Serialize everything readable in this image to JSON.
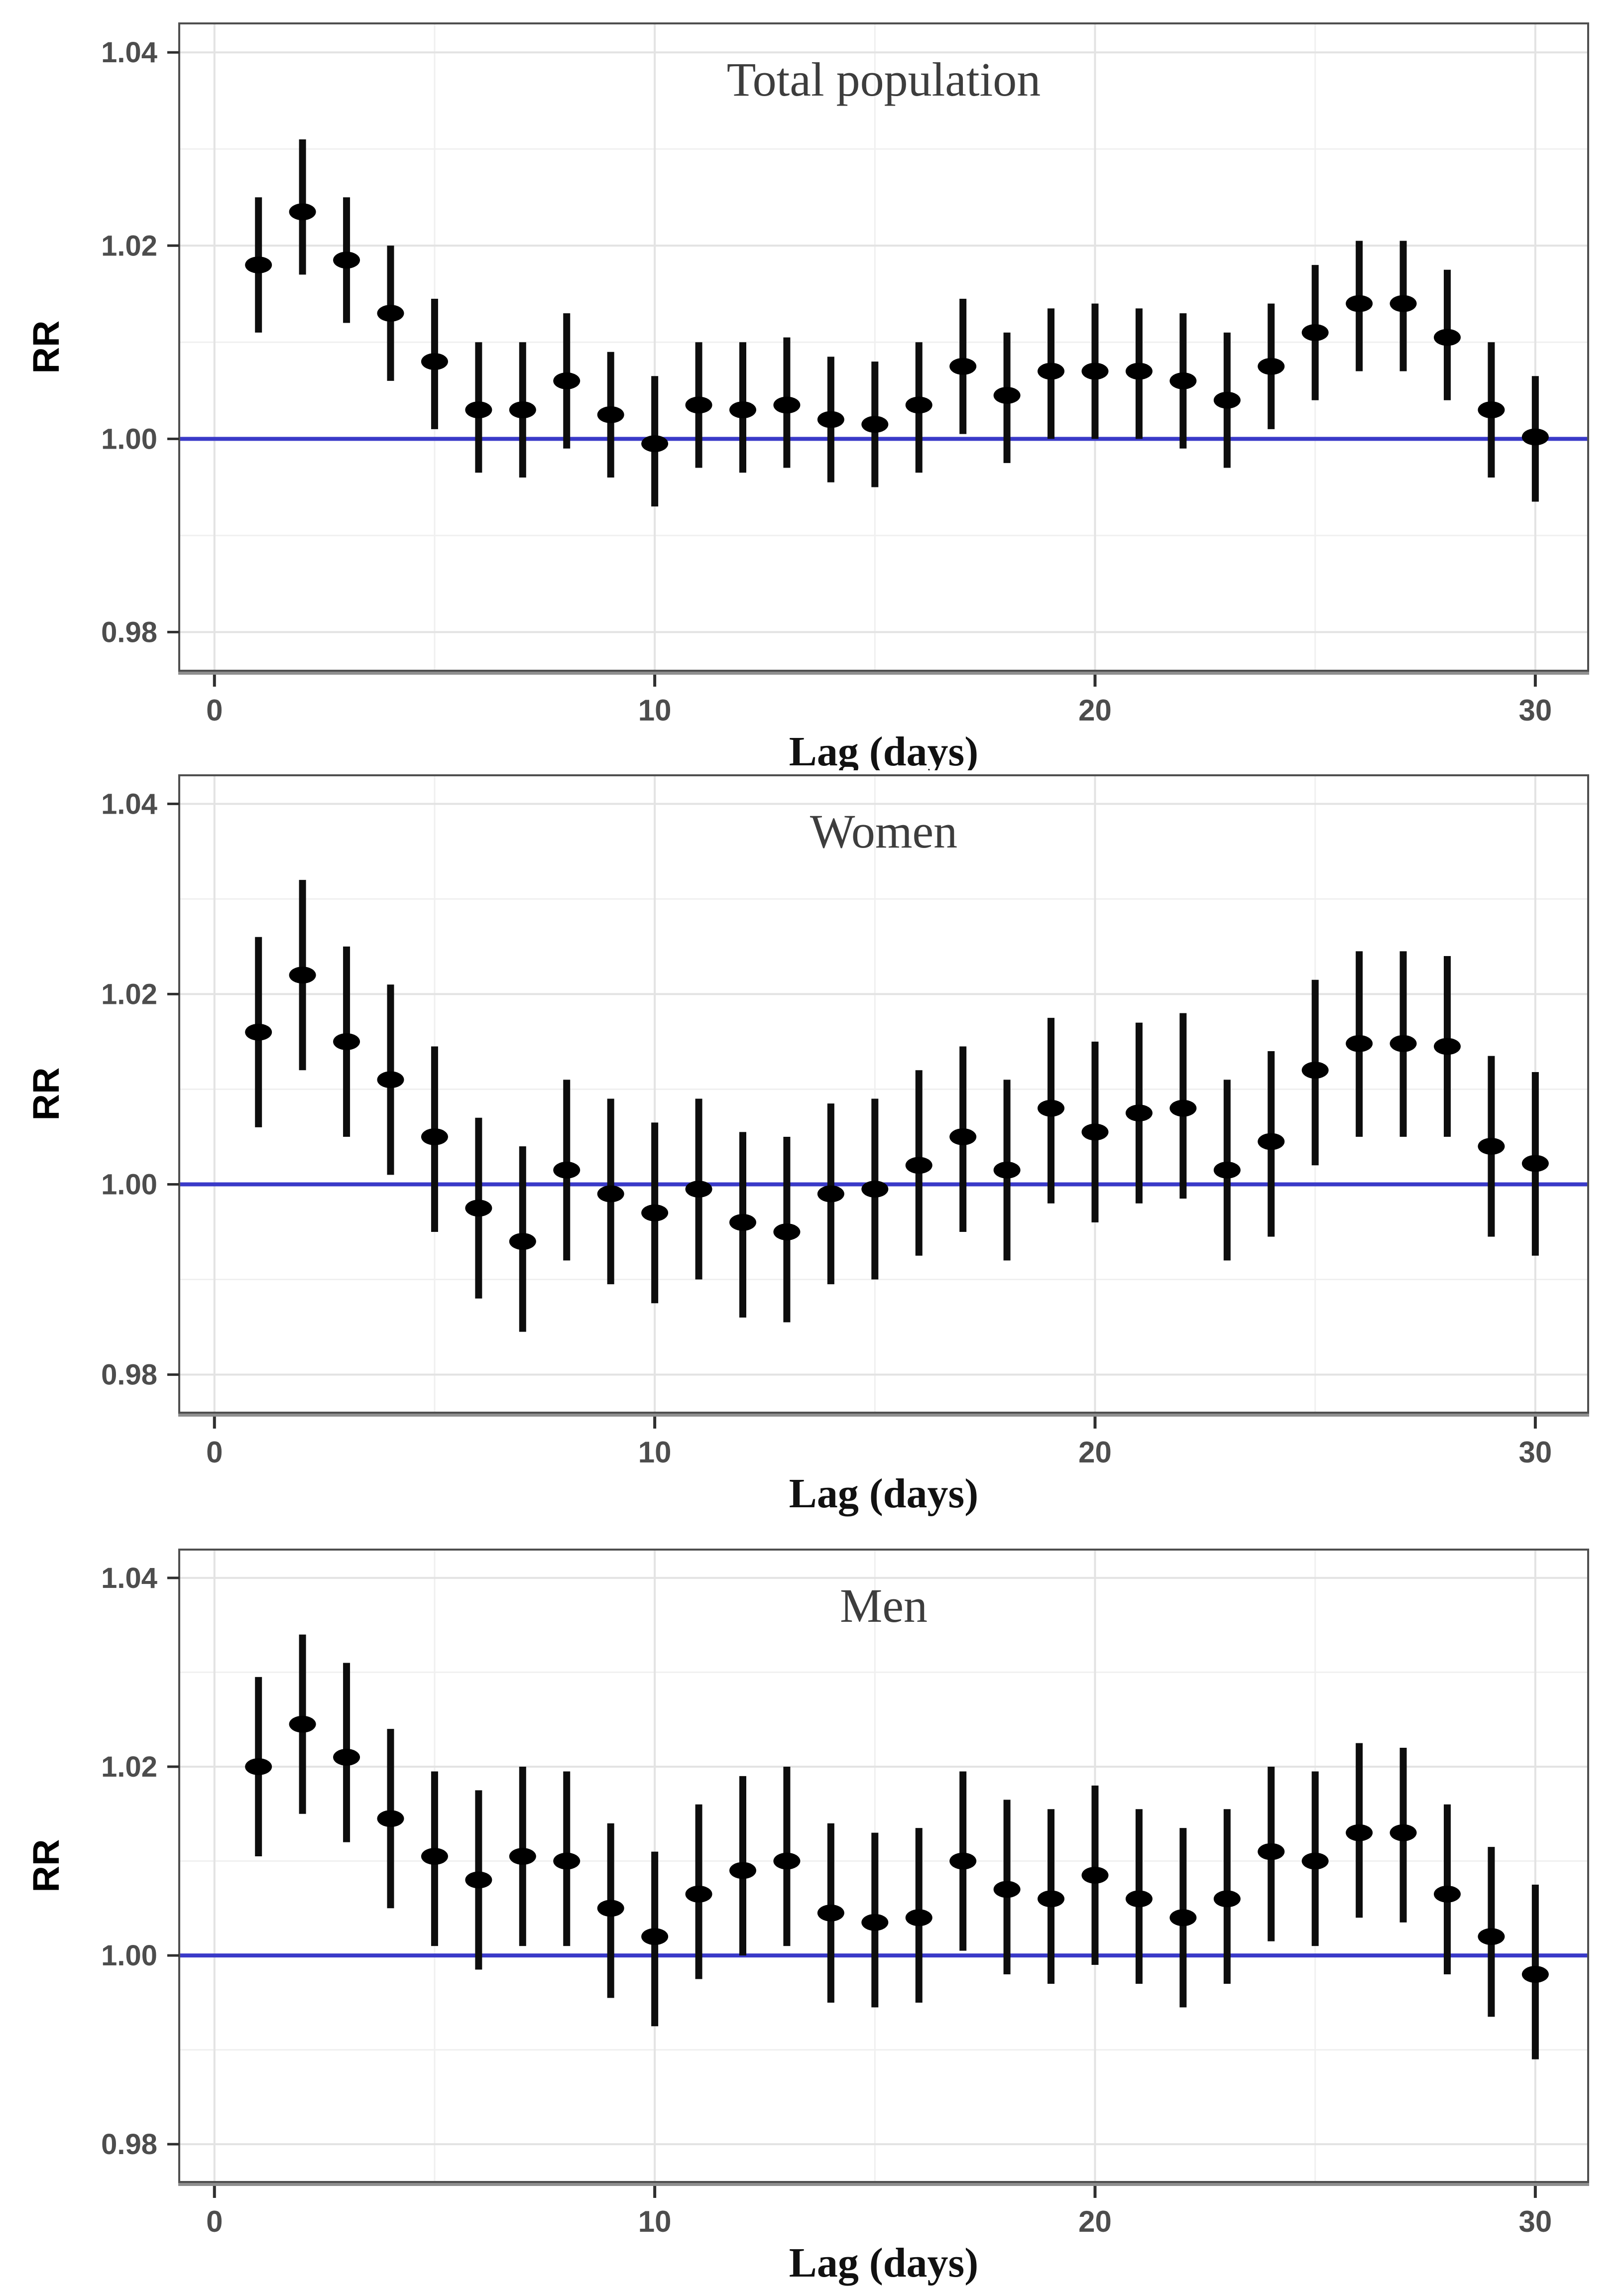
{
  "figure": {
    "ylabel": "RR",
    "xlabel": "Lag (days)",
    "reference_value": 1.0,
    "colors": {
      "point": "#000000",
      "error_bar": "#0d0d0d",
      "reference_line": "#3a3ac8",
      "grid_major": "#e3e3e3",
      "grid_minor": "#f0f0f0",
      "panel_border": "#4f4f4f",
      "axis_bottom": "#8f8f8f",
      "tick_mark": "#2f2f2f",
      "tick_label": "#4d4d4d",
      "title": "#3d3d3d",
      "xlabel_color": "#111111",
      "background": "#ffffff"
    }
  },
  "chart_data": [
    {
      "type": "scatter",
      "title": "Total population",
      "xlabel": "Lag (days)",
      "ylabel": "RR",
      "legend": "point estimate with 95% CI, blue reference line at RR=1.00",
      "x_ticks": [
        0,
        10,
        20,
        30
      ],
      "y_tick_values": [
        0.98,
        1.0,
        1.02,
        1.04
      ],
      "y_tick_labels": [
        "0.98",
        "1.00",
        "1.02",
        "1.04"
      ],
      "xlim": [
        -0.8,
        31.2
      ],
      "ylim": [
        0.976,
        1.043
      ],
      "x": [
        1,
        2,
        3,
        4,
        5,
        6,
        7,
        8,
        9,
        10,
        11,
        12,
        13,
        14,
        15,
        16,
        17,
        18,
        19,
        20,
        21,
        22,
        23,
        24,
        25,
        26,
        27,
        28,
        29,
        30
      ],
      "rr": [
        1.018,
        1.0235,
        1.0185,
        1.013,
        1.008,
        1.003,
        1.003,
        1.006,
        1.0025,
        0.9995,
        1.0035,
        1.003,
        1.0035,
        1.002,
        1.0015,
        1.0035,
        1.0075,
        1.0045,
        1.007,
        1.007,
        1.007,
        1.006,
        1.004,
        1.0075,
        1.011,
        1.014,
        1.014,
        1.0105,
        1.003,
        1.0002
      ],
      "ci_lower": [
        1.011,
        1.017,
        1.012,
        1.006,
        1.001,
        0.9965,
        0.996,
        0.999,
        0.996,
        0.993,
        0.997,
        0.9965,
        0.997,
        0.9955,
        0.995,
        0.9965,
        1.0005,
        0.9975,
        1.0,
        1.0,
        1.0,
        0.999,
        0.997,
        1.001,
        1.004,
        1.007,
        1.007,
        1.004,
        0.996,
        0.9935
      ],
      "ci_upper": [
        1.025,
        1.031,
        1.025,
        1.02,
        1.0145,
        1.01,
        1.01,
        1.013,
        1.009,
        1.0065,
        1.01,
        1.01,
        1.0105,
        1.0085,
        1.008,
        1.01,
        1.0145,
        1.011,
        1.0135,
        1.014,
        1.0135,
        1.013,
        1.011,
        1.014,
        1.018,
        1.0205,
        1.0205,
        1.0175,
        1.01,
        1.0065
      ]
    },
    {
      "type": "scatter",
      "title": "Women",
      "xlabel": "Lag (days)",
      "ylabel": "RR",
      "legend": "point estimate with 95% CI, blue reference line at RR=1.00",
      "x_ticks": [
        0,
        10,
        20,
        30
      ],
      "y_tick_values": [
        0.98,
        1.0,
        1.02,
        1.04
      ],
      "y_tick_labels": [
        "0.98",
        "1.00",
        "1.02",
        "1.04"
      ],
      "xlim": [
        -0.8,
        31.2
      ],
      "ylim": [
        0.976,
        1.043
      ],
      "x": [
        1,
        2,
        3,
        4,
        5,
        6,
        7,
        8,
        9,
        10,
        11,
        12,
        13,
        14,
        15,
        16,
        17,
        18,
        19,
        20,
        21,
        22,
        23,
        24,
        25,
        26,
        27,
        28,
        29,
        30
      ],
      "rr": [
        1.016,
        1.022,
        1.015,
        1.011,
        1.005,
        0.9975,
        0.994,
        1.0015,
        0.999,
        0.997,
        0.9995,
        0.996,
        0.995,
        0.999,
        0.9995,
        1.002,
        1.005,
        1.0015,
        1.008,
        1.0055,
        1.0075,
        1.008,
        1.0015,
        1.0045,
        1.012,
        1.0148,
        1.0148,
        1.0145,
        1.004,
        1.0022
      ],
      "ci_lower": [
        1.006,
        1.012,
        1.005,
        1.001,
        0.995,
        0.988,
        0.9845,
        0.992,
        0.9895,
        0.9875,
        0.99,
        0.986,
        0.9855,
        0.9895,
        0.99,
        0.9925,
        0.995,
        0.992,
        0.998,
        0.996,
        0.998,
        0.9985,
        0.992,
        0.9945,
        1.002,
        1.005,
        1.005,
        1.005,
        0.9945,
        0.9925
      ],
      "ci_upper": [
        1.026,
        1.032,
        1.025,
        1.021,
        1.0145,
        1.007,
        1.004,
        1.011,
        1.009,
        1.0065,
        1.009,
        1.0055,
        1.005,
        1.0085,
        1.009,
        1.012,
        1.0145,
        1.011,
        1.0175,
        1.015,
        1.017,
        1.018,
        1.011,
        1.014,
        1.0215,
        1.0245,
        1.0245,
        1.024,
        1.0135,
        1.0118
      ]
    },
    {
      "type": "scatter",
      "title": "Men",
      "xlabel": "Lag (days)",
      "ylabel": "RR",
      "legend": "point estimate with 95% CI, blue reference line at RR=1.00",
      "x_ticks": [
        0,
        10,
        20,
        30
      ],
      "y_tick_values": [
        0.98,
        1.0,
        1.02,
        1.04
      ],
      "y_tick_labels": [
        "0.98",
        "1.00",
        "1.02",
        "1.04"
      ],
      "xlim": [
        -0.8,
        31.2
      ],
      "ylim": [
        0.976,
        1.043
      ],
      "x": [
        1,
        2,
        3,
        4,
        5,
        6,
        7,
        8,
        9,
        10,
        11,
        12,
        13,
        14,
        15,
        16,
        17,
        18,
        19,
        20,
        21,
        22,
        23,
        24,
        25,
        26,
        27,
        28,
        29,
        30
      ],
      "rr": [
        1.02,
        1.0245,
        1.021,
        1.0145,
        1.0105,
        1.008,
        1.0105,
        1.01,
        1.005,
        1.002,
        1.0065,
        1.009,
        1.01,
        1.0045,
        1.0035,
        1.004,
        1.01,
        1.007,
        1.006,
        1.0085,
        1.006,
        1.004,
        1.006,
        1.011,
        1.01,
        1.013,
        1.013,
        1.0065,
        1.002,
        0.998
      ],
      "ci_lower": [
        1.0105,
        1.015,
        1.012,
        1.005,
        1.001,
        0.9985,
        1.001,
        1.001,
        0.9955,
        0.9925,
        0.9975,
        1.0,
        1.001,
        0.995,
        0.9945,
        0.995,
        1.0005,
        0.998,
        0.997,
        0.999,
        0.997,
        0.9945,
        0.997,
        1.0015,
        1.001,
        1.004,
        1.0035,
        0.998,
        0.9935,
        0.989
      ],
      "ci_upper": [
        1.0295,
        1.034,
        1.031,
        1.024,
        1.0195,
        1.0175,
        1.02,
        1.0195,
        1.014,
        1.011,
        1.016,
        1.019,
        1.02,
        1.014,
        1.013,
        1.0135,
        1.0195,
        1.0165,
        1.0155,
        1.018,
        1.0155,
        1.0135,
        1.0155,
        1.02,
        1.0195,
        1.0225,
        1.022,
        1.016,
        1.0115,
        1.0075
      ]
    }
  ]
}
